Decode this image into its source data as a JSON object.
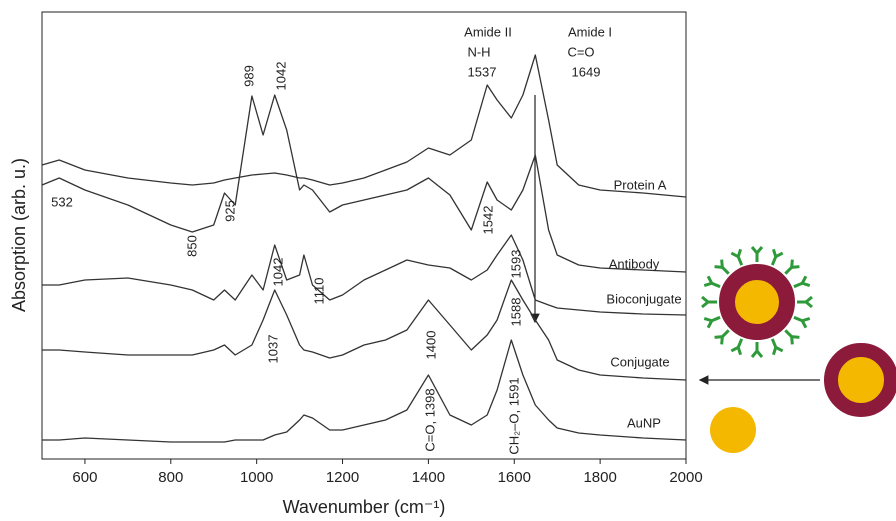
{
  "chart_data": {
    "type": "line",
    "xlabel": "Wavenumber (cm⁻¹)",
    "ylabel": "Absorption (arb. u.)",
    "xlim": [
      500,
      2000
    ],
    "ylim": [
      0,
      447
    ],
    "xticks": [
      600,
      800,
      1000,
      1200,
      1400,
      1600,
      1800,
      2000
    ],
    "color": "#333333",
    "x": [
      500,
      540,
      600,
      700,
      800,
      850,
      900,
      925,
      950,
      989,
      1015,
      1042,
      1070,
      1100,
      1110,
      1130,
      1170,
      1200,
      1250,
      1300,
      1350,
      1400,
      1450,
      1500,
      1537,
      1560,
      1593,
      1620,
      1649,
      1680,
      1700,
      1750,
      1800,
      1900,
      2000
    ],
    "series": [
      {
        "name": "Protein A",
        "values": [
          294,
          299,
          289,
          281,
          276,
          274,
          276,
          279,
          281,
          284,
          285,
          286,
          284,
          281,
          281,
          279,
          274,
          276,
          281,
          289,
          297,
          311,
          304,
          319,
          374,
          359,
          341,
          364,
          404,
          339,
          294,
          274,
          269,
          266,
          262
        ]
      },
      {
        "name": "Antibody",
        "values": [
          274,
          281,
          269,
          254,
          234,
          227,
          234,
          266,
          254,
          363,
          324,
          364,
          329,
          269,
          274,
          269,
          247,
          254,
          259,
          264,
          269,
          281,
          264,
          229,
          277,
          259,
          249,
          269,
          304,
          229,
          204,
          194,
          191,
          189,
          187
        ]
      },
      {
        "name": "Bioconjugate",
        "values": [
          174,
          174,
          179,
          181,
          174,
          169,
          159,
          169,
          159,
          184,
          169,
          214,
          179,
          184,
          204,
          174,
          159,
          164,
          179,
          189,
          199,
          194,
          191,
          179,
          189,
          204,
          224,
          199,
          159,
          154,
          151,
          149,
          147,
          145,
          144
        ]
      },
      {
        "name": "Conjugate",
        "values": [
          109,
          109,
          107,
          104,
          104,
          104,
          109,
          114,
          104,
          114,
          139,
          169,
          144,
          114,
          109,
          107,
          101,
          104,
          114,
          119,
          129,
          159,
          134,
          109,
          124,
          139,
          179,
          159,
          139,
          119,
          99,
          89,
          84,
          81,
          79
        ]
      },
      {
        "name": "AuNP",
        "values": [
          19,
          19,
          21,
          19,
          17,
          17,
          17,
          17,
          19,
          19,
          19,
          24,
          27,
          39,
          44,
          41,
          29,
          29,
          34,
          39,
          49,
          84,
          44,
          34,
          44,
          69,
          119,
          84,
          54,
          39,
          31,
          26,
          24,
          21,
          19
        ]
      }
    ],
    "annotations": [
      "989",
      "1042",
      "532",
      "850",
      "925",
      "Amide II",
      "N-H",
      "1537",
      "Amide I",
      "C=O",
      "1649",
      "1542",
      "1042",
      "1110",
      "1593",
      "1037",
      "1400",
      "1588",
      "C=O, 1398",
      "CH₂–O, 1591"
    ]
  }
}
